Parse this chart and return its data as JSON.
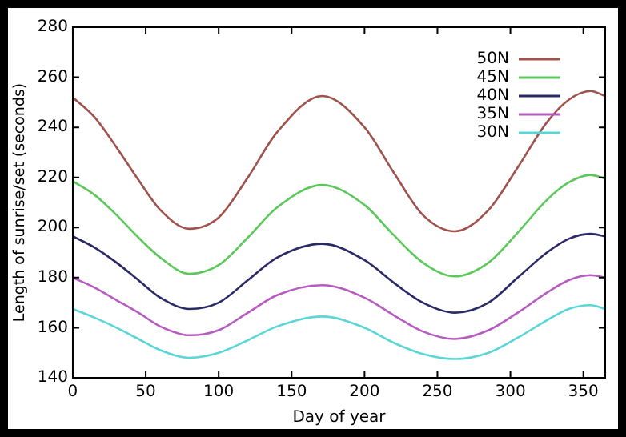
{
  "chart_data": {
    "type": "line",
    "xlabel": "Day of year",
    "ylabel": "Length of sunrise/set (seconds)",
    "x": [
      0,
      15,
      30,
      45,
      60,
      80,
      100,
      120,
      140,
      171,
      200,
      220,
      240,
      262,
      285,
      305,
      325,
      340,
      355,
      365
    ],
    "xlim": [
      0,
      365
    ],
    "xticks": [
      0,
      50,
      100,
      150,
      200,
      250,
      300,
      350
    ],
    "ylim": [
      140,
      280
    ],
    "yticks": [
      140,
      160,
      180,
      200,
      220,
      240,
      260,
      280
    ],
    "grid": false,
    "legend": "top right",
    "marker": "none",
    "line_style": "solid",
    "series": [
      {
        "name": "50N",
        "color": "#a0524c",
        "values": [
          252,
          244,
          232,
          219,
          207,
          199.5,
          204,
          220,
          238,
          252.5,
          240,
          222,
          205,
          198.5,
          207,
          224,
          242,
          251,
          254.5,
          252.5
        ]
      },
      {
        "name": "45N",
        "color": "#5cc85c",
        "values": [
          218.5,
          213,
          205,
          196,
          188,
          181.5,
          185,
          196,
          208,
          217,
          209,
          197,
          186,
          180.5,
          186,
          198,
          211,
          218,
          221,
          219.5
        ]
      },
      {
        "name": "40N",
        "color": "#2a2a66",
        "values": [
          196.5,
          192,
          186,
          179,
          172,
          167.5,
          170,
          179,
          188,
          193.5,
          187,
          178,
          170,
          166,
          170,
          180,
          190,
          195.5,
          197.5,
          196.5
        ]
      },
      {
        "name": "35N",
        "color": "#b65cc0",
        "values": [
          180,
          176,
          171,
          166,
          160.5,
          157,
          159,
          166,
          173,
          177,
          172,
          165,
          158.5,
          155.5,
          159,
          166,
          174,
          179,
          181,
          180
        ]
      },
      {
        "name": "30N",
        "color": "#5ad6d6",
        "values": [
          167.5,
          164,
          160,
          155.5,
          151,
          148,
          150,
          155,
          160.5,
          164.5,
          160,
          154,
          149.5,
          147.5,
          150,
          156,
          163,
          167.5,
          169,
          167.5
        ]
      }
    ]
  }
}
